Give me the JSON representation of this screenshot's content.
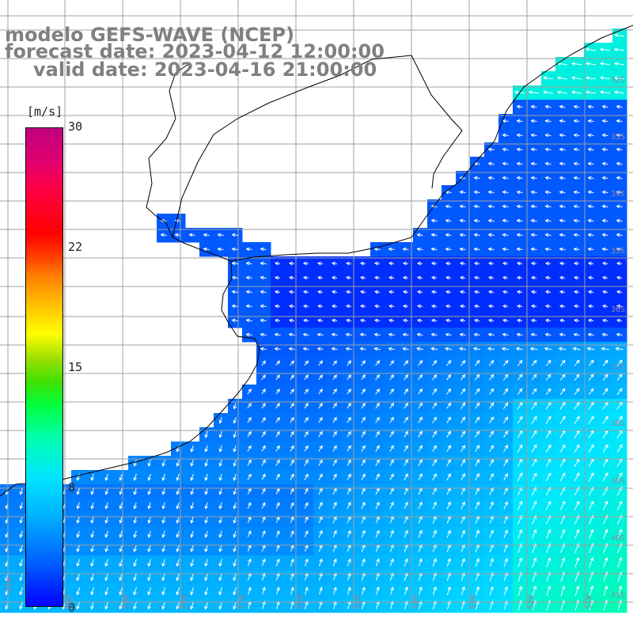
{
  "title": {
    "model": "modelo GEFS-WAVE (NCEP)",
    "forecast": "forecast date: 2023-04-12 12:00:00",
    "valid": "valid date: 2023-04-16 21:00:00"
  },
  "colorbar": {
    "unit": "[m/s]",
    "ticks": [
      "30",
      "22",
      "15",
      "8",
      "0"
    ],
    "tick_values": [
      30,
      22,
      15,
      8,
      0
    ],
    "range": [
      0,
      30
    ]
  },
  "map": {
    "lat_labels": [
      "32S",
      "33S",
      "34S",
      "35S",
      "36S",
      "37S",
      "38S",
      "39S",
      "40S",
      "41S"
    ],
    "lon_labels": [
      "61W",
      "60W",
      "59W",
      "58W",
      "57W",
      "56W",
      "55W",
      "54W",
      "53W",
      "52W",
      "51W"
    ],
    "lat_range": [
      -41,
      -31
    ],
    "lon_range": [
      -61,
      -50
    ],
    "colors": {
      "land": "#ffffff",
      "coast": "#000000",
      "grid": "#a0a0a0",
      "arrow": "#ffffff"
    }
  }
}
